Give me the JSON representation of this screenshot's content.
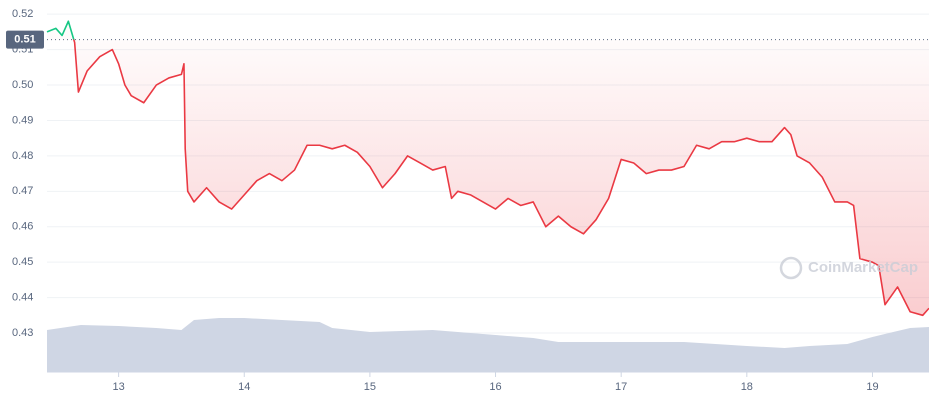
{
  "chart_data": {
    "type": "line",
    "color": "#ea3943",
    "up_color": "#16c784",
    "reference": {
      "value": 0.5128,
      "label": "0.51"
    },
    "watermark": "CoinMarketCap",
    "xlim": [
      12.43,
      19.45
    ],
    "xticks": [
      13,
      14,
      15,
      16,
      17,
      18,
      19
    ],
    "ylim": [
      0.419,
      0.524
    ],
    "yticks": [
      0.43,
      0.44,
      0.45,
      0.46,
      0.47,
      0.48,
      0.49,
      {
        "value": 0.5,
        "label": "0.50"
      },
      0.51,
      0.52
    ],
    "grid": true,
    "x": [
      12.43,
      12.5,
      12.55,
      12.6,
      12.65,
      12.68,
      12.75,
      12.85,
      12.95,
      13.0,
      13.05,
      13.1,
      13.2,
      13.3,
      13.4,
      13.5,
      13.52,
      13.53,
      13.55,
      13.6,
      13.7,
      13.8,
      13.9,
      14.0,
      14.1,
      14.2,
      14.3,
      14.4,
      14.5,
      14.6,
      14.7,
      14.8,
      14.9,
      15.0,
      15.1,
      15.2,
      15.3,
      15.4,
      15.5,
      15.6,
      15.65,
      15.7,
      15.8,
      15.9,
      16.0,
      16.1,
      16.2,
      16.3,
      16.4,
      16.5,
      16.6,
      16.7,
      16.8,
      16.9,
      17.0,
      17.1,
      17.2,
      17.3,
      17.4,
      17.5,
      17.6,
      17.7,
      17.8,
      17.9,
      18.0,
      18.1,
      18.2,
      18.3,
      18.35,
      18.4,
      18.5,
      18.6,
      18.7,
      18.8,
      18.85,
      18.9,
      19.0,
      19.05,
      19.1,
      19.2,
      19.3,
      19.4,
      19.45
    ],
    "values": [
      0.515,
      0.516,
      0.514,
      0.518,
      0.512,
      0.498,
      0.504,
      0.508,
      0.51,
      0.506,
      0.5,
      0.497,
      0.495,
      0.5,
      0.502,
      0.503,
      0.506,
      0.482,
      0.47,
      0.467,
      0.471,
      0.467,
      0.465,
      0.469,
      0.473,
      0.475,
      0.473,
      0.476,
      0.483,
      0.483,
      0.482,
      0.483,
      0.481,
      0.477,
      0.471,
      0.475,
      0.48,
      0.478,
      0.476,
      0.477,
      0.468,
      0.47,
      0.469,
      0.467,
      0.465,
      0.468,
      0.466,
      0.467,
      0.46,
      0.463,
      0.46,
      0.458,
      0.462,
      0.468,
      0.479,
      0.478,
      0.475,
      0.476,
      0.476,
      0.477,
      0.483,
      0.482,
      0.484,
      0.484,
      0.485,
      0.484,
      0.484,
      0.488,
      0.486,
      0.48,
      0.478,
      0.474,
      0.467,
      0.467,
      0.466,
      0.451,
      0.45,
      0.449,
      0.438,
      0.443,
      0.436,
      0.435,
      0.437
    ],
    "volume": {
      "color": "#cfd6e4",
      "x": [
        12.43,
        12.7,
        13.0,
        13.3,
        13.5,
        13.6,
        13.8,
        14.0,
        14.3,
        14.6,
        14.7,
        15.0,
        15.5,
        16.0,
        16.3,
        16.5,
        17.0,
        17.5,
        18.0,
        18.3,
        18.5,
        18.8,
        19.0,
        19.3,
        19.45
      ],
      "values": [
        42,
        47,
        46,
        44,
        42,
        52,
        54,
        54,
        52,
        50,
        44,
        40,
        42,
        37,
        34,
        30,
        30,
        30,
        26,
        24,
        26,
        28,
        35,
        44,
        45
      ]
    }
  }
}
